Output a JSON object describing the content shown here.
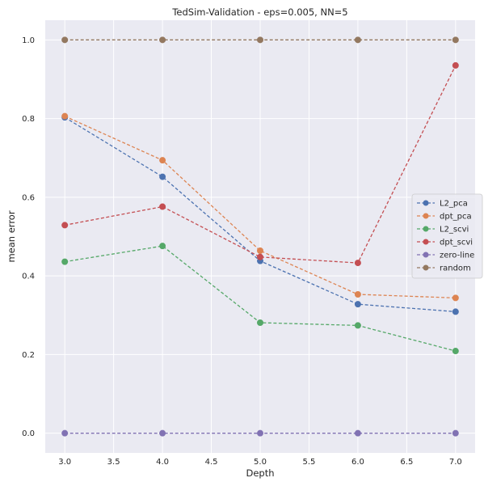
{
  "chart_data": {
    "type": "line",
    "title": "TedSim-Validation - eps=0.005, NN=5",
    "xlabel": "Depth",
    "ylabel": "mean error",
    "x": [
      3.0,
      4.0,
      5.0,
      6.0,
      7.0
    ],
    "xlim": [
      2.8,
      7.2
    ],
    "ylim": [
      -0.05,
      1.05
    ],
    "xticks": [
      "3.0",
      "3.5",
      "4.0",
      "4.5",
      "5.0",
      "5.5",
      "6.0",
      "6.5",
      "7.0"
    ],
    "yticks": [
      "0.0",
      "0.2",
      "0.4",
      "0.6",
      "0.8",
      "1.0"
    ],
    "grid": true,
    "background": "#eaeaf2",
    "legend_position": "center-right",
    "line_style": "dashed",
    "markers": "circle",
    "series": [
      {
        "name": "L2_pca",
        "color": "#4c72b0",
        "values": [
          0.803,
          0.652,
          0.438,
          0.328,
          0.309
        ]
      },
      {
        "name": "dpt_pca",
        "color": "#dd8452",
        "values": [
          0.806,
          0.694,
          0.464,
          0.353,
          0.344
        ]
      },
      {
        "name": "L2_scvi",
        "color": "#55a868",
        "values": [
          0.436,
          0.476,
          0.281,
          0.274,
          0.209
        ]
      },
      {
        "name": "dpt_scvi",
        "color": "#c44e52",
        "values": [
          0.529,
          0.576,
          0.448,
          0.433,
          0.935
        ]
      },
      {
        "name": "zero-line",
        "color": "#8172b3",
        "values": [
          0.0,
          0.0,
          0.0,
          0.0,
          0.0
        ]
      },
      {
        "name": "random",
        "color": "#937860",
        "values": [
          1.0,
          1.0,
          1.0,
          1.0,
          1.0
        ]
      }
    ]
  }
}
